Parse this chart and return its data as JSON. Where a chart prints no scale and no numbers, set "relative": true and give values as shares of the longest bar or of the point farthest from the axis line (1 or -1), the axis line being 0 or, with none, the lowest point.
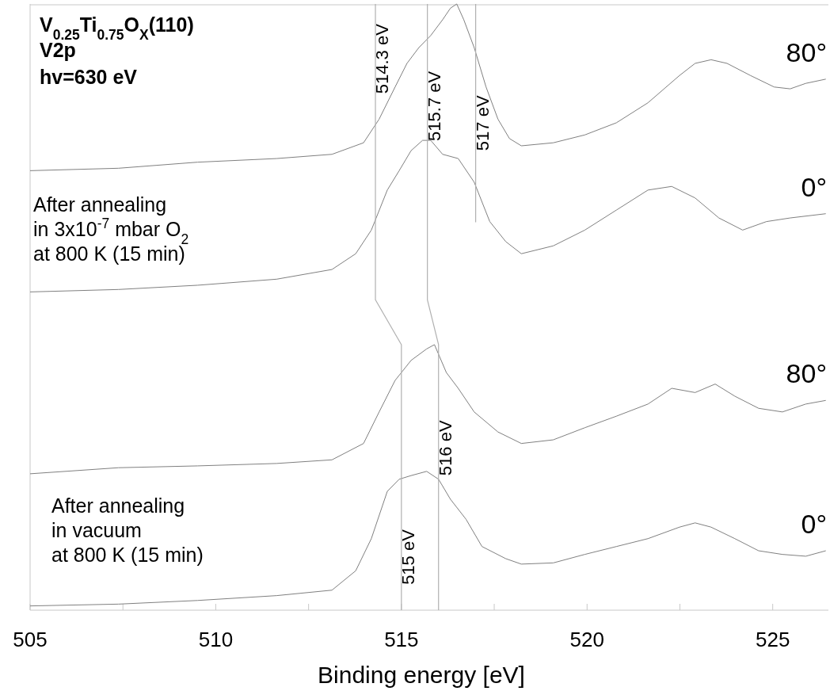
{
  "chart_data": {
    "type": "line",
    "relative": true,
    "title": "V$_{0.25}$Ti$_{0.75}$O$_{X}$(110)",
    "subtitle": "V2p",
    "xlabel": "Binding energy [eV]",
    "xlim": [
      505,
      526.5
    ],
    "xticks": [
      505,
      {
        "value": 507.5,
        "label": null
      },
      510,
      {
        "value": 512.5,
        "label": null
      },
      515,
      {
        "value": 517.5,
        "label": null
      },
      520,
      {
        "value": 522.5,
        "label": null
      },
      525
    ],
    "grid": false,
    "marker": "none",
    "line_style": "solid",
    "series": [
      {
        "name": "80°",
        "color": "#808080",
        "x": [
          505,
          507.38,
          509.51,
          511.64,
          513.13,
          513.98,
          514.4,
          514.83,
          515.15,
          515.47,
          515.79,
          516.11,
          516.32,
          516.49,
          516.68,
          516.96,
          517.28,
          517.6,
          517.91,
          518.23,
          519.09,
          519.94,
          520.79,
          521.64,
          522.49,
          522.91,
          523.34,
          523.77,
          524.4,
          525.04,
          525.47,
          525.89,
          526.43
        ],
        "values": [
          0.725,
          0.729,
          0.739,
          0.745,
          0.752,
          0.771,
          0.81,
          0.863,
          0.902,
          0.928,
          0.948,
          0.974,
          0.993,
          1.0,
          0.974,
          0.928,
          0.863,
          0.81,
          0.778,
          0.766,
          0.771,
          0.784,
          0.804,
          0.837,
          0.882,
          0.902,
          0.908,
          0.902,
          0.882,
          0.863,
          0.86,
          0.869,
          0.876
        ]
      },
      {
        "name": "0°",
        "color": "#808080",
        "x": [
          505,
          507.38,
          509.51,
          511.64,
          513.13,
          513.77,
          514.19,
          514.62,
          514.94,
          515.26,
          515.57,
          515.79,
          516.11,
          516.53,
          516.96,
          517.38,
          517.81,
          518.23,
          519.09,
          519.94,
          520.79,
          521.64,
          522.28,
          522.91,
          523.55,
          524.19,
          524.83,
          525.47,
          526.43
        ],
        "values": [
          0.525,
          0.529,
          0.536,
          0.546,
          0.562,
          0.588,
          0.627,
          0.693,
          0.725,
          0.758,
          0.775,
          0.775,
          0.752,
          0.745,
          0.706,
          0.641,
          0.608,
          0.588,
          0.601,
          0.627,
          0.66,
          0.693,
          0.699,
          0.68,
          0.647,
          0.627,
          0.641,
          0.647,
          0.654
        ]
      },
      {
        "name": "80°",
        "color": "#808080",
        "x": [
          505,
          507.38,
          509.51,
          511.64,
          513.13,
          513.98,
          514.4,
          514.83,
          515.26,
          515.68,
          515.89,
          516.21,
          516.53,
          516.96,
          517.6,
          518.23,
          519.09,
          519.94,
          520.79,
          521.64,
          522.28,
          522.91,
          523.45,
          523.98,
          524.62,
          525.26,
          525.89,
          526.43
        ],
        "values": [
          0.225,
          0.235,
          0.238,
          0.242,
          0.248,
          0.275,
          0.327,
          0.379,
          0.412,
          0.431,
          0.438,
          0.392,
          0.366,
          0.327,
          0.294,
          0.275,
          0.281,
          0.301,
          0.32,
          0.34,
          0.366,
          0.359,
          0.373,
          0.353,
          0.333,
          0.327,
          0.34,
          0.346
        ]
      },
      {
        "name": "0°",
        "color": "#808080",
        "x": [
          505,
          507.38,
          509.51,
          511.64,
          513.13,
          513.77,
          514.19,
          514.62,
          514.94,
          515.26,
          515.68,
          516.0,
          516.32,
          516.74,
          517.17,
          517.81,
          518.23,
          519.09,
          519.94,
          520.79,
          521.64,
          522.49,
          522.91,
          523.34,
          523.98,
          524.62,
          525.26,
          525.89,
          526.43
        ],
        "values": [
          0.007,
          0.01,
          0.016,
          0.024,
          0.033,
          0.065,
          0.118,
          0.196,
          0.216,
          0.222,
          0.229,
          0.216,
          0.183,
          0.15,
          0.105,
          0.085,
          0.076,
          0.078,
          0.092,
          0.105,
          0.118,
          0.137,
          0.144,
          0.137,
          0.118,
          0.098,
          0.092,
          0.089,
          0.098
        ]
      },
      {
        "color": "#b0b0b0",
        "x": [
          514.3,
          514.3,
          515,
          515
        ],
        "values": [
          1.0,
          0.512,
          0.438,
          0
        ]
      },
      {
        "color": "#b0b0b0",
        "x": [
          515.7,
          515.7,
          516,
          516
        ],
        "values": [
          1.0,
          0.512,
          0.438,
          0
        ]
      },
      {
        "color": "#b0b0b0",
        "x": [
          517,
          517
        ],
        "values": [
          1.0,
          0.64
        ]
      }
    ],
    "annotations": [
      "hv=630 eV",
      "After annealing\nin 3x10$^{-7}$ mbar O$_{2}$\nat 800 K (15 min)",
      "After annealing\nin vacuum\nat 800 K (15 min)",
      {
        "text": "514.3 eV",
        "x": 514.3,
        "y": 0.852
      },
      {
        "text": "515.7 eV",
        "x": 515.7,
        "y": 0.774
      },
      {
        "text": "517 eV",
        "x": 517,
        "y": 0.758
      },
      {
        "text": "516 eV",
        "x": 516,
        "y": 0.222
      },
      {
        "text": "515 eV",
        "x": 515,
        "y": 0.042
      }
    ]
  }
}
